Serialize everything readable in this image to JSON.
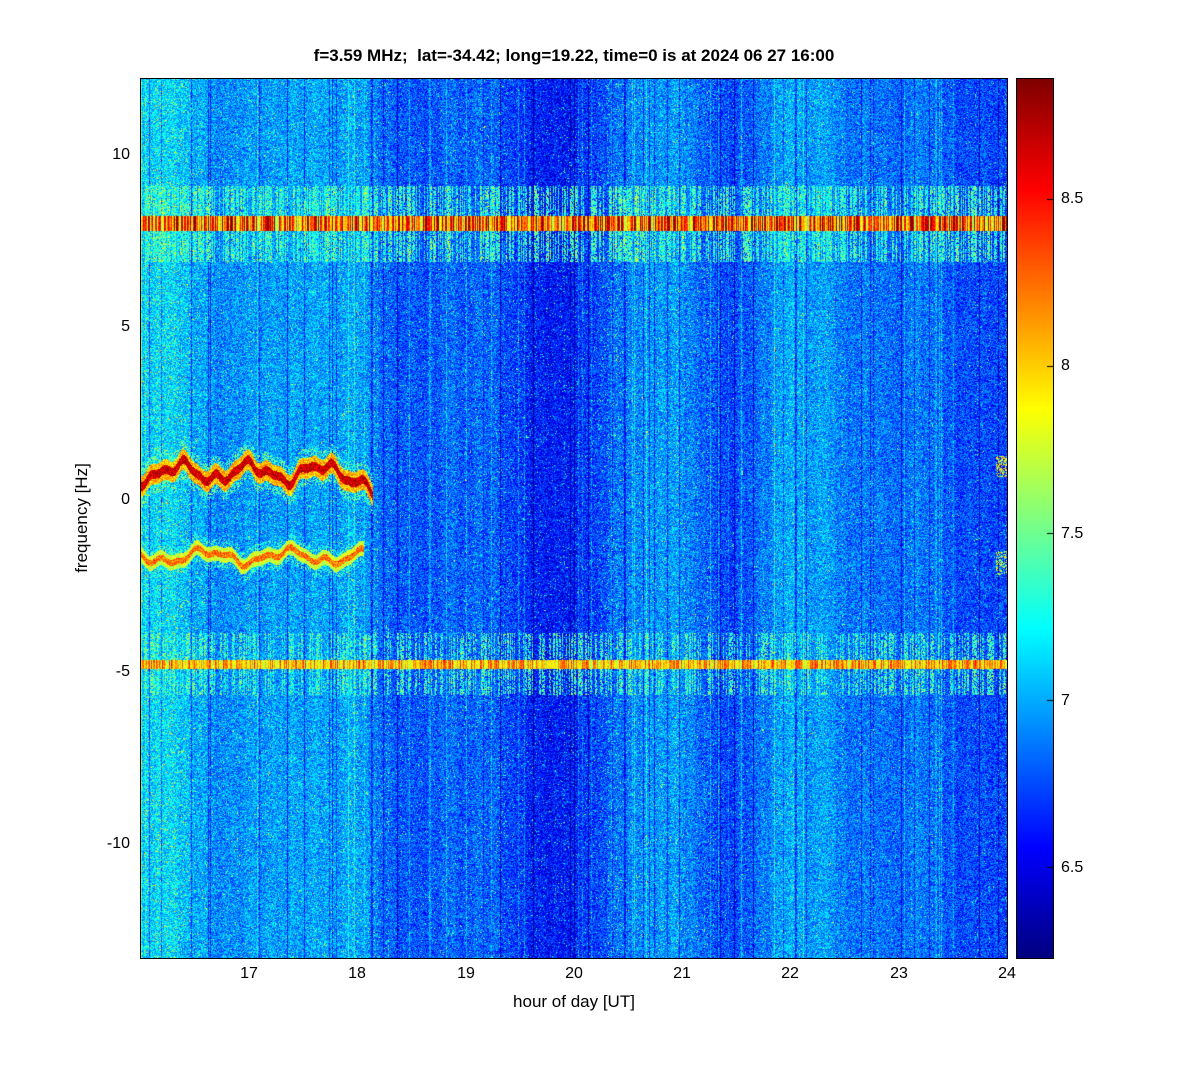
{
  "chart_data": {
    "type": "heatmap",
    "title": "f=3.59 MHz;  lat=-34.42; long=19.22, time=0 is at 2024 06 27 16:00",
    "xlabel": "hour of day [UT]",
    "ylabel": "frequency [Hz]",
    "x_range": [
      16,
      24
    ],
    "y_range": [
      -13.3,
      12.2
    ],
    "x_ticks": [
      "17",
      "18",
      "19",
      "20",
      "21",
      "22",
      "23",
      "24"
    ],
    "x_tick_values": [
      17,
      18,
      19,
      20,
      21,
      22,
      23,
      24
    ],
    "y_ticks": [
      "10",
      "5",
      "0",
      "-5",
      "-10"
    ],
    "y_tick_values": [
      10,
      5,
      0,
      -5,
      -10
    ],
    "colorbar": {
      "colormap": "jet",
      "min": 6.23,
      "max": 8.86,
      "ticks": [
        "8.5",
        "8",
        "7.5",
        "7",
        "6.5"
      ],
      "tick_values": [
        8.5,
        8,
        7.5,
        7,
        6.5
      ]
    },
    "noise_floor_level": 6.88,
    "noise_spread": 0.52,
    "grid": false,
    "seed": 20240627,
    "features": [
      {
        "name": "carrier-band-upper",
        "kind": "horizontal-dashed-band",
        "freq_hz": 8.0,
        "x_span": [
          16,
          24
        ],
        "peak_level": 8.95,
        "core_halfwidth_hz": 0.22,
        "halo_halfwidth_hz": 1.1,
        "description": "dark red dashed interference band with vertical yellow spikes"
      },
      {
        "name": "carrier-band-lower",
        "kind": "horizontal-dashed-band",
        "freq_hz": -4.78,
        "x_span": [
          16,
          24
        ],
        "peak_level": 8.45,
        "core_halfwidth_hz": 0.13,
        "halo_halfwidth_hz": 0.9,
        "description": "orange-yellow dashed interference band with vertical spikes"
      },
      {
        "name": "doppler-trace-upper",
        "kind": "wavy-trace",
        "freq_hz": 0.78,
        "x_span": [
          16,
          18.14
        ],
        "peak_level": 8.85,
        "description": "thick wavy dark-red Doppler trace ending near 18:08 with downward tail"
      },
      {
        "name": "doppler-trace-lower",
        "kind": "wavy-trace",
        "freq_hz": -1.66,
        "x_span": [
          16,
          18.06
        ],
        "peak_level": 8.45,
        "description": "thinner wavy orange-red Doppler trace"
      },
      {
        "name": "edge-blip-upper",
        "kind": "blip",
        "freq_hz": 0.95,
        "x_span": [
          23.9,
          24
        ],
        "peak_level": 8.2
      },
      {
        "name": "edge-blip-lower",
        "kind": "blip",
        "freq_hz": -1.85,
        "x_span": [
          23.9,
          24
        ],
        "peak_level": 8.0
      }
    ]
  }
}
